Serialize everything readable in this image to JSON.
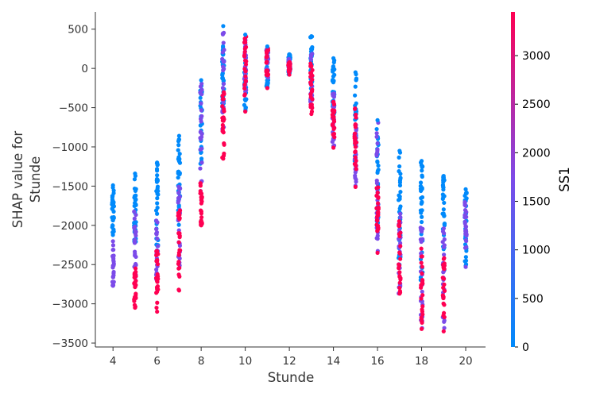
{
  "chart_data": {
    "type": "scatter",
    "xlabel": "Stunde",
    "ylabel_lines": [
      "SHAP value for",
      "Stunde"
    ],
    "xticks": [
      4,
      6,
      8,
      10,
      12,
      14,
      16,
      18,
      20
    ],
    "yticks": [
      500,
      0,
      -500,
      -1000,
      -1500,
      -2000,
      -2500,
      -3000,
      -3500
    ],
    "xlim": [
      3.2,
      20.9
    ],
    "ylim": [
      -3550,
      720
    ],
    "colorbar": {
      "label": "SS1",
      "ticks": [
        0,
        500,
        1000,
        1500,
        2000,
        2500,
        3000
      ],
      "range": [
        0,
        3450
      ],
      "colors": [
        "#008afb",
        "#7c4be9",
        "#ff0052"
      ]
    },
    "series": [
      {
        "x": 4,
        "ymin": -2770,
        "ymax": -1490,
        "low_color_band": [
          -2200,
          -1500
        ],
        "mid_color_band": [
          -2770,
          -2200
        ]
      },
      {
        "x": 5,
        "ymin": -3050,
        "ymax": -1340,
        "low_color_band": [
          -2300,
          -1340
        ],
        "mid_color_band": [
          -2800,
          -1800
        ],
        "high_color_band": [
          -3050,
          -2500
        ]
      },
      {
        "x": 6,
        "ymin": -3100,
        "ymax": -1200,
        "low_color_band": [
          -2300,
          -1200
        ],
        "mid_color_band": [
          -2700,
          -1800
        ],
        "high_color_band": [
          -3100,
          -2300
        ]
      },
      {
        "x": 7,
        "ymin": -2830,
        "ymax": -860,
        "low_color_band": [
          -2000,
          -860
        ],
        "mid_color_band": [
          -2600,
          -1400
        ],
        "high_color_band": [
          -2830,
          -1800
        ]
      },
      {
        "x": 8,
        "ymin": -2000,
        "ymax": -150,
        "low_color_band": [
          -1300,
          -200
        ],
        "mid_color_band": [
          -1600,
          -150
        ],
        "high_color_band": [
          -2000,
          -1400
        ]
      },
      {
        "x": 9,
        "ymin": -1150,
        "ymax": 540,
        "low_color_band": [
          -500,
          300
        ],
        "mid_color_band": [
          -800,
          540
        ],
        "high_color_band": [
          -1150,
          -300
        ]
      },
      {
        "x": 10,
        "ymin": -550,
        "ymax": 430,
        "low_color_band": [
          -550,
          200
        ],
        "mid_color_band": [
          -300,
          430
        ],
        "high_color_band": [
          -400,
          430
        ]
      },
      {
        "x": 11,
        "ymin": -250,
        "ymax": 280,
        "low_color_band": [
          -250,
          150
        ],
        "mid_color_band": [
          -150,
          280
        ],
        "high_color_band": [
          -100,
          280
        ]
      },
      {
        "x": 12,
        "ymin": -80,
        "ymax": 180,
        "low_color_band": [
          -80,
          180
        ],
        "mid_color_band": [
          -50,
          120
        ],
        "high_color_band": [
          -50,
          80
        ]
      },
      {
        "x": 13,
        "ymin": -580,
        "ymax": 410,
        "low_color_band": [
          -400,
          410
        ],
        "mid_color_band": [
          -500,
          200
        ],
        "high_color_band": [
          -580,
          100
        ]
      },
      {
        "x": 14,
        "ymin": -1010,
        "ymax": 130,
        "low_color_band": [
          -700,
          130
        ],
        "mid_color_band": [
          -1010,
          -300
        ],
        "high_color_band": [
          -900,
          -400
        ]
      },
      {
        "x": 15,
        "ymin": -1510,
        "ymax": -50,
        "low_color_band": [
          -1200,
          -50
        ],
        "mid_color_band": [
          -1510,
          -700
        ],
        "high_color_band": [
          -1300,
          -500
        ]
      },
      {
        "x": 16,
        "ymin": -2350,
        "ymax": -660,
        "low_color_band": [
          -2000,
          -760
        ],
        "mid_color_band": [
          -2350,
          -660
        ],
        "high_color_band": [
          -2100,
          -1500
        ]
      },
      {
        "x": 17,
        "ymin": -2870,
        "ymax": -1050,
        "low_color_band": [
          -2500,
          -1050
        ],
        "mid_color_band": [
          -2870,
          -1800
        ],
        "high_color_band": [
          -2870,
          -1900
        ]
      },
      {
        "x": 18,
        "ymin": -3320,
        "ymax": -1180,
        "low_color_band": [
          -2800,
          -1180
        ],
        "mid_color_band": [
          -3320,
          -2000
        ],
        "high_color_band": [
          -3320,
          -2200
        ]
      },
      {
        "x": 19,
        "ymin": -3350,
        "ymax": -1370,
        "low_color_band": [
          -2600,
          -1370
        ],
        "mid_color_band": [
          -3350,
          -2000
        ],
        "high_color_band": [
          -3200,
          -2400
        ]
      },
      {
        "x": 20,
        "ymin": -2530,
        "ymax": -1540,
        "low_color_band": [
          -2530,
          -1540
        ],
        "mid_color_band": [
          -2300,
          -1700
        ]
      }
    ]
  }
}
